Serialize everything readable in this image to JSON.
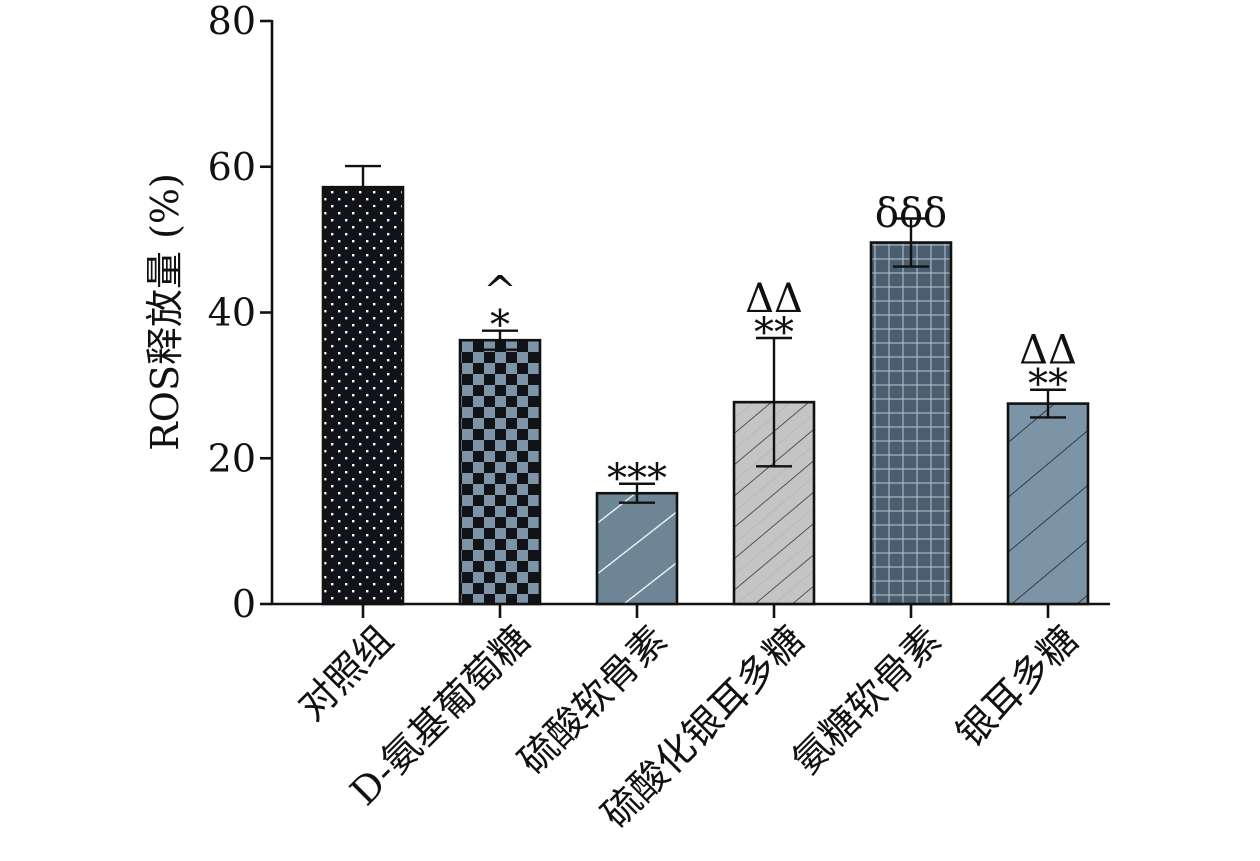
{
  "chart_data": {
    "type": "bar",
    "ylabel": "ROS释放量 (%)",
    "ylim": [
      0,
      80
    ],
    "yticks": [
      0,
      20,
      40,
      60,
      80
    ],
    "grid": false,
    "categories": [
      "对照组",
      "D-氨基葡萄糖",
      "硫酸软骨素",
      "硫酸化银耳多糖",
      "氨糖软骨素",
      "银耳多糖"
    ],
    "values": [
      57.2,
      36.2,
      15.2,
      27.7,
      49.6,
      27.5
    ],
    "error": [
      2.9,
      1.3,
      1.3,
      8.8,
      3.3,
      1.9
    ],
    "annotations": [
      "",
      "*\n^",
      "***",
      "**\nΔΔ",
      "δδδ",
      "**\nΔΔ"
    ],
    "fill_colors": [
      "#111318",
      "#7d93a6",
      "#6e8596",
      "#c4c4c4",
      "#4a5e70",
      "#7d93a6"
    ],
    "patterns": [
      "dots",
      "checker",
      "sparse-diagonal",
      "dense-diagonal",
      "grid",
      "diagonal"
    ]
  }
}
